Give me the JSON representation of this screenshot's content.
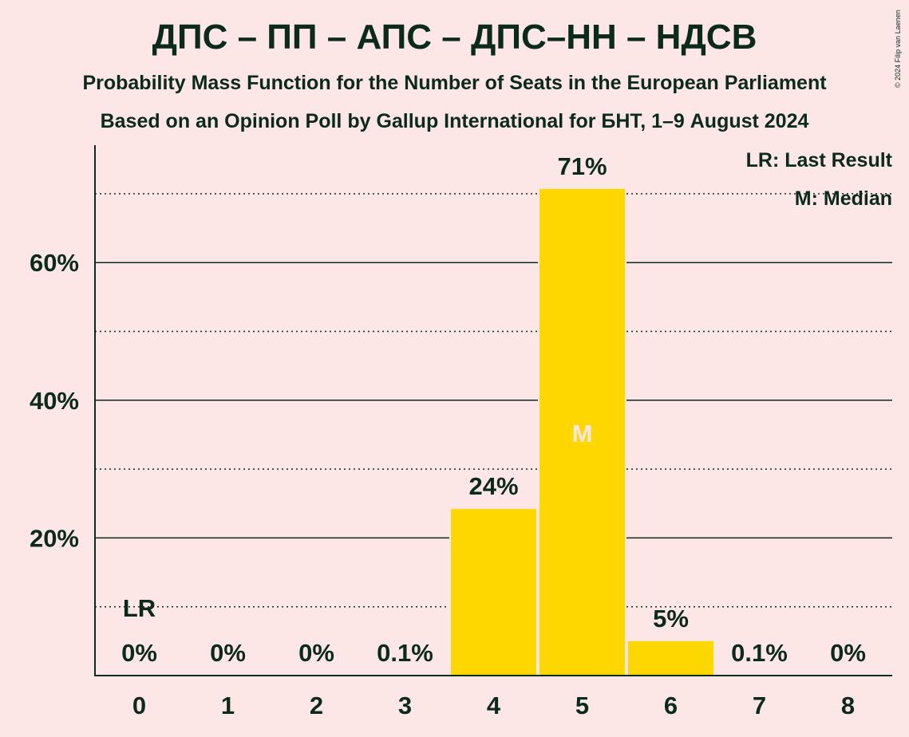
{
  "header": {
    "title": "ДПС – ПП – АПС – ДПС–НН – НДСВ",
    "subtitle": "Probability Mass Function for the Number of Seats in the European Parliament",
    "subtitle2": "Based on an Opinion Poll by Gallup International for БНТ, 1–9 August 2024",
    "copyright": "© 2024 Filip van Laenen"
  },
  "legend": {
    "last_result": "LR: Last Result",
    "median": "M: Median"
  },
  "colors": {
    "background": "#fde6e6",
    "bar": "#ffd700",
    "text": "#0c2a1a",
    "median_marker": "#fde6e6"
  },
  "chart_data": {
    "type": "bar",
    "categories": [
      "0",
      "1",
      "2",
      "3",
      "4",
      "5",
      "6",
      "7",
      "8"
    ],
    "values": [
      0,
      0,
      0,
      0.1,
      24.2,
      70.7,
      5.0,
      0.1,
      0
    ],
    "data_labels": [
      "0%",
      "0%",
      "0%",
      "0.1%",
      "24%",
      "71%",
      "5%",
      "0.1%",
      "0%"
    ],
    "ylim": [
      0,
      77
    ],
    "yticks": [
      20,
      40,
      60
    ],
    "ytick_labels": [
      "20%",
      "40%",
      "60%"
    ],
    "minor_gridlines": [
      10,
      30,
      50,
      70
    ],
    "last_result_category": "0",
    "last_result_label": "LR",
    "median_category": "5",
    "median_label": "M",
    "grid": true,
    "legend_position": "top-right"
  }
}
